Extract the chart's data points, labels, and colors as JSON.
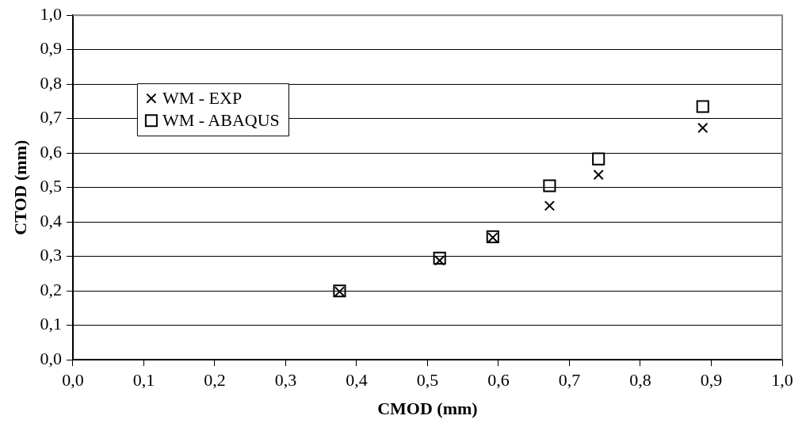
{
  "chart_data": {
    "type": "scatter",
    "xlabel": "CMOD (mm)",
    "ylabel": "CTOD (mm)",
    "xlim": [
      0,
      1
    ],
    "ylim": [
      0,
      1
    ],
    "xticks": [
      {
        "value": 0,
        "label": "0,0"
      },
      {
        "value": 0.1,
        "label": "0,1"
      },
      {
        "value": 0.2,
        "label": "0,2"
      },
      {
        "value": 0.3,
        "label": "0,3"
      },
      {
        "value": 0.4,
        "label": "0,4"
      },
      {
        "value": 0.5,
        "label": "0,5"
      },
      {
        "value": 0.6,
        "label": "0,6"
      },
      {
        "value": 0.7,
        "label": "0,7"
      },
      {
        "value": 0.8,
        "label": "0,8"
      },
      {
        "value": 0.9,
        "label": "0,9"
      },
      {
        "value": 1,
        "label": "1,0"
      }
    ],
    "yticks": [
      {
        "value": 0,
        "label": "0,0"
      },
      {
        "value": 0.1,
        "label": "0,1"
      },
      {
        "value": 0.2,
        "label": "0,2"
      },
      {
        "value": 0.3,
        "label": "0,3"
      },
      {
        "value": 0.4,
        "label": "0,4"
      },
      {
        "value": 0.5,
        "label": "0,5"
      },
      {
        "value": 0.6,
        "label": "0,6"
      },
      {
        "value": 0.7,
        "label": "0,7"
      },
      {
        "value": 0.8,
        "label": "0,8"
      },
      {
        "value": 0.9,
        "label": "0,9"
      },
      {
        "value": 1,
        "label": "1,0"
      }
    ],
    "grid": "y",
    "legend": "top left",
    "x": [
      0.376,
      0.517,
      0.592,
      0.672,
      0.741,
      0.888
    ],
    "series": [
      {
        "name": "WM - EXP",
        "color": "#000000",
        "marker": "cross",
        "values": [
          0.198,
          0.288,
          0.355,
          0.447,
          0.537,
          0.673
        ]
      },
      {
        "name": "WM - ABAQUS",
        "color": "#000000",
        "marker": "square",
        "values": [
          0.2,
          0.295,
          0.357,
          0.505,
          0.583,
          0.735
        ]
      }
    ]
  }
}
